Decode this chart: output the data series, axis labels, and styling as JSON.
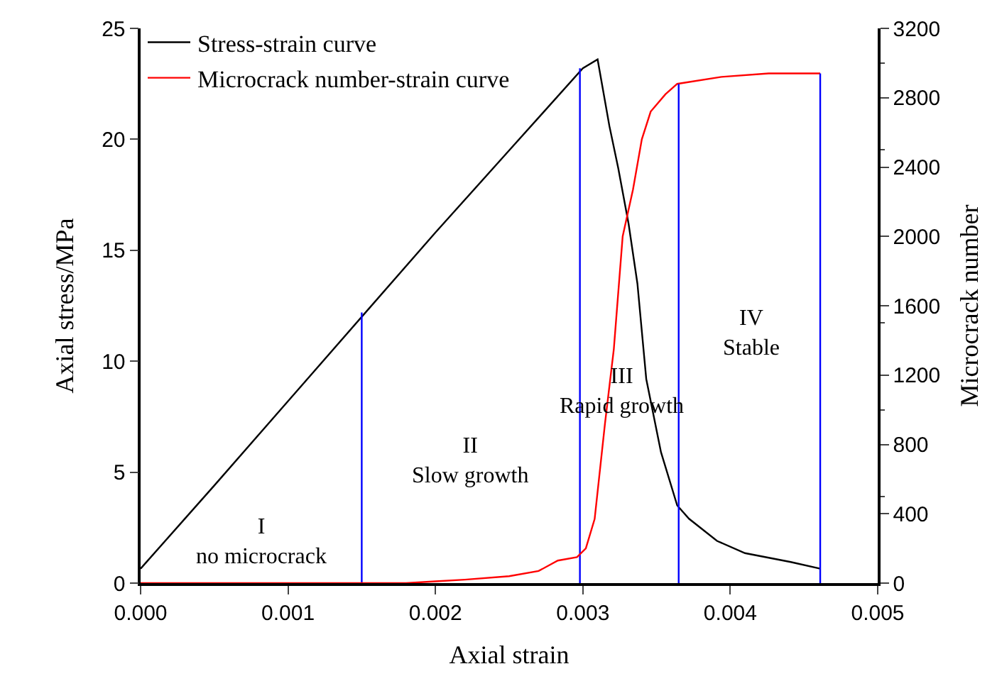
{
  "chart_data": {
    "type": "line",
    "xlabel": "Axial strain",
    "ylabel": "Axial stress/MPa",
    "y2label": "Microcrack number",
    "series": [
      {
        "name": "Stress-strain curve",
        "color": "#000000",
        "x": [
          0,
          0.0005,
          0.001,
          0.0015,
          0.002,
          0.0025,
          0.003,
          0.0031,
          0.00318,
          0.00324,
          0.00331,
          0.00337,
          0.00343,
          0.00353,
          0.00364,
          0.00372,
          0.00391,
          0.0041,
          0.00441,
          0.00461
        ],
        "values": [
          0.65,
          4.4,
          8.2,
          12.0,
          15.8,
          19.5,
          23.2,
          23.6,
          20.6,
          18.7,
          16.2,
          13.5,
          9.2,
          5.9,
          3.5,
          2.9,
          1.9,
          1.35,
          0.95,
          0.65
        ]
      },
      {
        "name": "Microcrack number-strain curve",
        "color": "#ff0000",
        "axis": "y2",
        "x": [
          0,
          0.0018,
          0.002,
          0.0022,
          0.0025,
          0.0027,
          0.00283,
          0.00296,
          0.00302,
          0.00308,
          0.00315,
          0.00321,
          0.00327,
          0.00334,
          0.0034,
          0.00346,
          0.00356,
          0.00364,
          0.00394,
          0.00426,
          0.00461
        ],
        "values": [
          0,
          0,
          10,
          20,
          40,
          70,
          130,
          150,
          200,
          370,
          920,
          1350,
          2000,
          2270,
          2560,
          2720,
          2820,
          2880,
          2920,
          2940,
          2940
        ]
      },
      {
        "color": "#0000ff",
        "x": [
          0.0015,
          0.0015
        ],
        "values": [
          0,
          12.2
        ]
      },
      {
        "color": "#0000ff",
        "x": [
          0.00298,
          0.00298
        ],
        "values": [
          0,
          23.2
        ]
      },
      {
        "color": "#0000ff",
        "axis": "y2",
        "x": [
          0.00365,
          0.00365
        ],
        "values": [
          0,
          2880
        ]
      },
      {
        "color": "#0000ff",
        "axis": "y2",
        "x": [
          0.00461,
          0.00461
        ],
        "values": [
          0,
          2940
        ]
      }
    ],
    "xlim": [
      0,
      0.005
    ],
    "xticks": [
      {
        "value": 0,
        "label": "0.000"
      },
      {
        "value": 0.001,
        "label": "0.001"
      },
      {
        "value": 0.002,
        "label": "0.002"
      },
      {
        "value": 0.003,
        "label": "0.003"
      },
      {
        "value": 0.004,
        "label": "0.004"
      },
      {
        "value": 0.005,
        "label": "0.005"
      }
    ],
    "ylim": [
      0,
      25
    ],
    "yticks": [
      0,
      5,
      10,
      15,
      20,
      25
    ],
    "y2lim": [
      0,
      3200
    ],
    "y2ticks": [
      0,
      400,
      800,
      1200,
      1600,
      2000,
      2400,
      2800,
      3200
    ],
    "annotations": [
      "I\nno microcrack",
      "II\nSlow growth",
      "III\nRapid growth",
      "IV\nStable"
    ],
    "legend": "top left",
    "marker": "none",
    "line_style": "solid"
  }
}
